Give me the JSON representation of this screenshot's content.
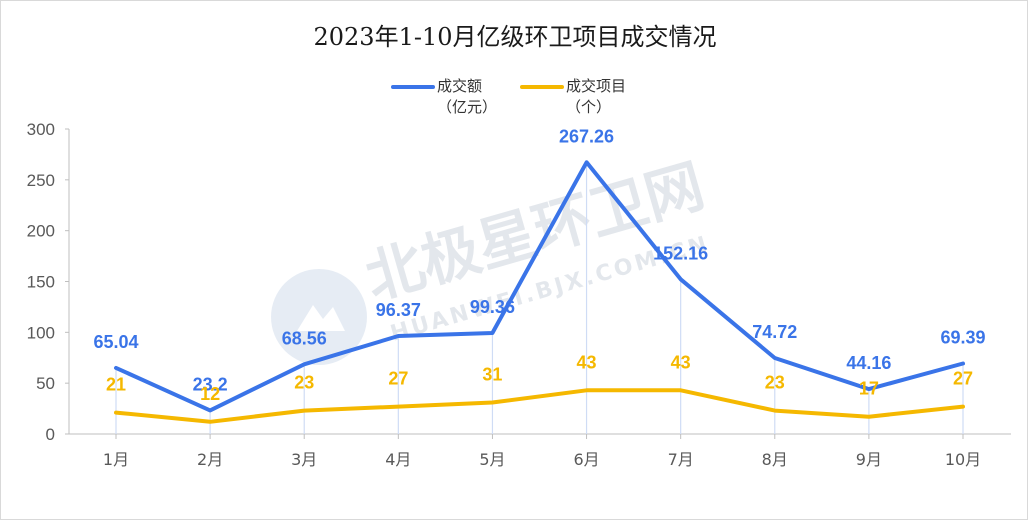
{
  "chart_data": {
    "type": "line",
    "title": "2023年1-10月亿级环卫项目成交情况",
    "categories": [
      "1月",
      "2月",
      "3月",
      "4月",
      "5月",
      "6月",
      "7月",
      "8月",
      "9月",
      "10月"
    ],
    "ylim": [
      0,
      300
    ],
    "yticks": [
      0,
      50,
      100,
      150,
      200,
      250,
      300
    ],
    "grid": false,
    "legend_position": "top-center",
    "series": [
      {
        "name_line1": "成交额",
        "name_line2": "（亿元）",
        "color": "#3a74e8",
        "values": [
          65.04,
          23.2,
          68.56,
          96.37,
          99.36,
          267.26,
          152.16,
          74.72,
          44.16,
          69.39
        ],
        "labels": [
          "65.04",
          "23.2",
          "68.56",
          "96.37",
          "99.36",
          "267.26",
          "152.16",
          "74.72",
          "44.16",
          "69.39"
        ]
      },
      {
        "name_line1": "成交项目",
        "name_line2": "（个）",
        "color": "#f5b800",
        "values": [
          21,
          12,
          23,
          27,
          31,
          43,
          43,
          23,
          17,
          27
        ],
        "labels": [
          "21",
          "12",
          "23",
          "27",
          "31",
          "43",
          "43",
          "23",
          "17",
          "27"
        ]
      }
    ]
  },
  "watermark": {
    "main": "北极星环卫网",
    "sub": "HUANWEI.BJX.COM.CN"
  }
}
